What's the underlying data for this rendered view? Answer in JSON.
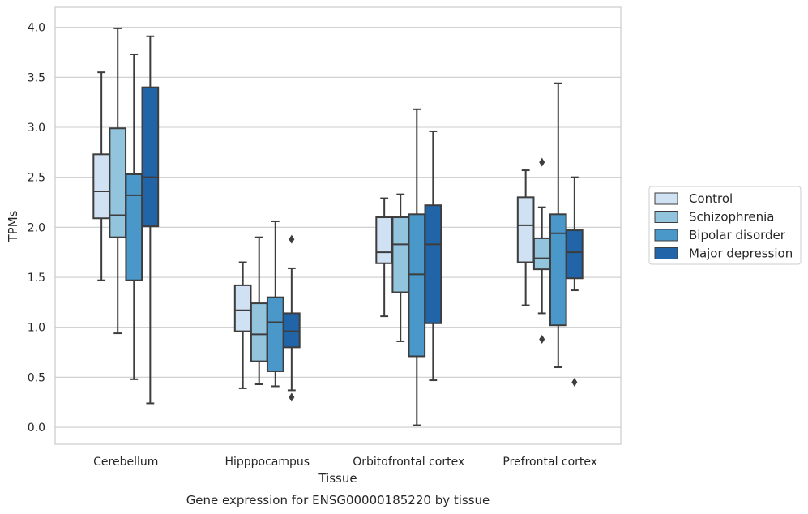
{
  "chart_data": {
    "type": "box",
    "title": "Gene expression for ENSG00000185220 by tissue",
    "xlabel": "Tissue",
    "ylabel": "TPMs",
    "ylim": [
      -0.17,
      4.2
    ],
    "yticks": [
      0.0,
      0.5,
      1.0,
      1.5,
      2.0,
      2.5,
      3.0,
      3.5,
      4.0
    ],
    "ytick_labels": [
      "0.0",
      "0.5",
      "1.0",
      "1.5",
      "2.0",
      "2.5",
      "3.0",
      "3.5",
      "4.0"
    ],
    "grid": "horizontal",
    "legend_placement": "outside-right",
    "categories": [
      "Cerebellum",
      "Hipppocampus",
      "Orbitofrontal cortex",
      "Prefrontal cortex"
    ],
    "series": [
      {
        "name": "Control",
        "color": "#cfe1f2",
        "boxes": [
          {
            "whisker_low": 1.47,
            "q1": 2.09,
            "median": 2.36,
            "q3": 2.73,
            "whisker_high": 3.55,
            "outliers": []
          },
          {
            "whisker_low": 0.39,
            "q1": 0.96,
            "median": 1.17,
            "q3": 1.42,
            "whisker_high": 1.65,
            "outliers": []
          },
          {
            "whisker_low": 1.11,
            "q1": 1.64,
            "median": 1.75,
            "q3": 2.1,
            "whisker_high": 2.29,
            "outliers": []
          },
          {
            "whisker_low": 1.22,
            "q1": 1.65,
            "median": 2.02,
            "q3": 2.3,
            "whisker_high": 2.57,
            "outliers": []
          }
        ]
      },
      {
        "name": "Schizophrenia",
        "color": "#93c4de",
        "boxes": [
          {
            "whisker_low": 0.94,
            "q1": 1.9,
            "median": 2.12,
            "q3": 2.99,
            "whisker_high": 3.99,
            "outliers": []
          },
          {
            "whisker_low": 0.43,
            "q1": 0.66,
            "median": 0.93,
            "q3": 1.24,
            "whisker_high": 1.9,
            "outliers": []
          },
          {
            "whisker_low": 0.86,
            "q1": 1.35,
            "median": 1.83,
            "q3": 2.1,
            "whisker_high": 2.33,
            "outliers": []
          },
          {
            "whisker_low": 1.14,
            "q1": 1.58,
            "median": 1.69,
            "q3": 1.89,
            "whisker_high": 2.2,
            "outliers": [
              0.88,
              2.65
            ]
          }
        ]
      },
      {
        "name": "Bipolar disorder",
        "color": "#4a98c9",
        "boxes": [
          {
            "whisker_low": 0.48,
            "q1": 1.47,
            "median": 2.32,
            "q3": 2.53,
            "whisker_high": 3.73,
            "outliers": []
          },
          {
            "whisker_low": 0.41,
            "q1": 0.56,
            "median": 1.05,
            "q3": 1.3,
            "whisker_high": 2.06,
            "outliers": []
          },
          {
            "whisker_low": 0.02,
            "q1": 0.71,
            "median": 1.53,
            "q3": 2.13,
            "whisker_high": 3.18,
            "outliers": []
          },
          {
            "whisker_low": 0.6,
            "q1": 1.02,
            "median": 1.94,
            "q3": 2.13,
            "whisker_high": 3.44,
            "outliers": []
          }
        ]
      },
      {
        "name": "Major depression",
        "color": "#2264a8",
        "boxes": [
          {
            "whisker_low": 0.24,
            "q1": 2.01,
            "median": 2.5,
            "q3": 3.4,
            "whisker_high": 3.91,
            "outliers": []
          },
          {
            "whisker_low": 0.37,
            "q1": 0.8,
            "median": 0.96,
            "q3": 1.14,
            "whisker_high": 1.59,
            "outliers": [
              0.3,
              1.88
            ]
          },
          {
            "whisker_low": 0.47,
            "q1": 1.04,
            "median": 1.83,
            "q3": 2.22,
            "whisker_high": 2.96,
            "outliers": []
          },
          {
            "whisker_low": 1.37,
            "q1": 1.49,
            "median": 1.75,
            "q3": 1.97,
            "whisker_high": 2.5,
            "outliers": [
              0.45
            ]
          }
        ]
      }
    ],
    "colors": {
      "grid": "#cccccc",
      "frame": "#cccccc",
      "box_edge": "#3d3d3d",
      "text": "#262626"
    }
  }
}
